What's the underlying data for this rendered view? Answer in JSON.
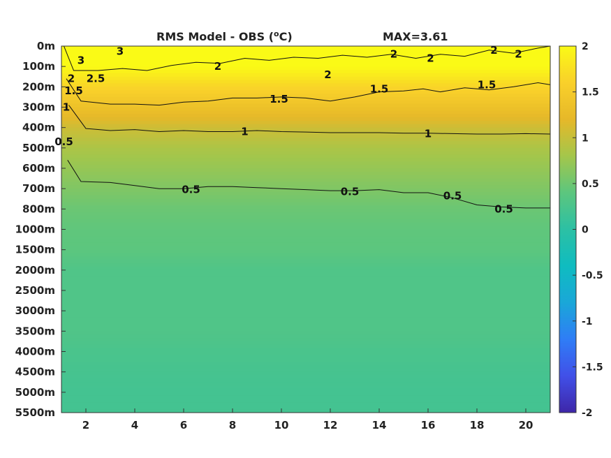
{
  "chart_data": {
    "type": "heatmap",
    "title": "RMS Model - OBS (",
    "title_unit": "o",
    "title_unit_suffix": "C)",
    "max_label": "MAX=3.61",
    "x_ticks": [
      "2",
      "4",
      "6",
      "8",
      "10",
      "12",
      "14",
      "16",
      "18",
      "20"
    ],
    "x_tick_values": [
      2,
      4,
      6,
      8,
      10,
      12,
      14,
      16,
      18,
      20
    ],
    "xlim": [
      1,
      21
    ],
    "y_ticks": [
      "0m",
      "100m",
      "200m",
      "300m",
      "400m",
      "500m",
      "600m",
      "700m",
      "800m",
      "1000m",
      "1500m",
      "2000m",
      "2500m",
      "3000m",
      "3500m",
      "4000m",
      "4500m",
      "5000m",
      "5500m"
    ],
    "colorbar": {
      "range": [
        -2,
        2
      ],
      "ticks": [
        "2",
        "1.5",
        "1",
        "0.5",
        "0",
        "-0.5",
        "-1",
        "-1.5",
        "-2"
      ],
      "tick_values": [
        2,
        1.5,
        1,
        0.5,
        0,
        -0.5,
        -1,
        -1.5,
        -2
      ],
      "colormap": [
        "#3e26a8",
        "#4150e8",
        "#2f7df6",
        "#1aa7d8",
        "#0fbcc0",
        "#2cc0a4",
        "#5cc67e",
        "#a4c64b",
        "#e6b829",
        "#f9d02a",
        "#fafa16"
      ]
    },
    "depth_profile": {
      "depth_m": [
        0,
        100,
        200,
        300,
        400,
        500,
        600,
        700,
        800,
        1000,
        1500,
        2000,
        2500,
        3000,
        3500,
        4000,
        4500,
        5000,
        5500
      ],
      "rms": [
        2.4,
        2.0,
        1.65,
        1.35,
        1.05,
        0.85,
        0.72,
        0.6,
        0.48,
        0.42,
        0.4,
        0.3,
        0.3,
        0.3,
        0.3,
        0.25,
        0.22,
        0.2,
        0.2
      ]
    },
    "contour_labels": [
      {
        "text": "3",
        "x": 3.4,
        "depth_m": 25
      },
      {
        "text": "2",
        "x": 7.4,
        "depth_m": 100
      },
      {
        "text": "2",
        "x": 11.9,
        "depth_m": 140
      },
      {
        "text": "2",
        "x": 14.6,
        "depth_m": 40
      },
      {
        "text": "2",
        "x": 16.1,
        "depth_m": 60
      },
      {
        "text": "2",
        "x": 18.7,
        "depth_m": 20
      },
      {
        "text": "2",
        "x": 19.7,
        "depth_m": 40
      },
      {
        "text": "2.5",
        "x": 2.4,
        "depth_m": 160
      },
      {
        "text": "1.5",
        "x": 9.9,
        "depth_m": 260
      },
      {
        "text": "1.5",
        "x": 14.0,
        "depth_m": 210
      },
      {
        "text": "1.5",
        "x": 18.4,
        "depth_m": 190
      },
      {
        "text": "1",
        "x": 8.5,
        "depth_m": 420
      },
      {
        "text": "1",
        "x": 16.0,
        "depth_m": 430
      },
      {
        "text": "0.5",
        "x": 6.3,
        "depth_m": 705
      },
      {
        "text": "0.5",
        "x": 12.8,
        "depth_m": 715
      },
      {
        "text": "0.5",
        "x": 17.0,
        "depth_m": 735
      },
      {
        "text": "0.5",
        "x": 19.1,
        "depth_m": 800
      },
      {
        "text": "3",
        "x": 1.8,
        "depth_m": 70
      },
      {
        "text": "2",
        "x": 1.4,
        "depth_m": 160
      },
      {
        "text": "1.5",
        "x": 1.5,
        "depth_m": 220
      },
      {
        "text": "1",
        "x": 1.2,
        "depth_m": 300
      },
      {
        "text": "0.5",
        "x": 1.1,
        "depth_m": 470
      }
    ],
    "contours": [
      {
        "level": 2,
        "points": [
          [
            1.1,
            0
          ],
          [
            1.5,
            120
          ],
          [
            2.5,
            120
          ],
          [
            3.5,
            110
          ],
          [
            4.5,
            120
          ],
          [
            5.5,
            95
          ],
          [
            6.5,
            80
          ],
          [
            7.5,
            85
          ],
          [
            8.5,
            60
          ],
          [
            9.5,
            70
          ],
          [
            10.5,
            55
          ],
          [
            11.5,
            60
          ],
          [
            12.5,
            45
          ],
          [
            13.5,
            55
          ],
          [
            14.5,
            40
          ],
          [
            15.5,
            60
          ],
          [
            16.5,
            40
          ],
          [
            17.5,
            50
          ],
          [
            18.5,
            20
          ],
          [
            19.5,
            35
          ],
          [
            20.5,
            10
          ],
          [
            21,
            0
          ]
        ]
      },
      {
        "level": 1.5,
        "points": [
          [
            1.2,
            160
          ],
          [
            1.8,
            270
          ],
          [
            3,
            285
          ],
          [
            4,
            285
          ],
          [
            5,
            290
          ],
          [
            6,
            275
          ],
          [
            7,
            270
          ],
          [
            8,
            255
          ],
          [
            9,
            255
          ],
          [
            10,
            250
          ],
          [
            11,
            255
          ],
          [
            12,
            270
          ],
          [
            13,
            250
          ],
          [
            14,
            225
          ],
          [
            15,
            220
          ],
          [
            15.8,
            210
          ],
          [
            16.5,
            225
          ],
          [
            17.5,
            205
          ],
          [
            18.5,
            215
          ],
          [
            19.5,
            200
          ],
          [
            20.5,
            180
          ],
          [
            21,
            190
          ]
        ]
      },
      {
        "level": 1,
        "points": [
          [
            1.3,
            290
          ],
          [
            2,
            405
          ],
          [
            3,
            415
          ],
          [
            4,
            410
          ],
          [
            5,
            420
          ],
          [
            6,
            415
          ],
          [
            7,
            420
          ],
          [
            8,
            420
          ],
          [
            9,
            415
          ],
          [
            10,
            420
          ],
          [
            11,
            422
          ],
          [
            12,
            425
          ],
          [
            13,
            425
          ],
          [
            14,
            425
          ],
          [
            15,
            428
          ],
          [
            16,
            428
          ],
          [
            17,
            430
          ],
          [
            18,
            432
          ],
          [
            19,
            432
          ],
          [
            20,
            430
          ],
          [
            21,
            432
          ]
        ]
      },
      {
        "level": 0.5,
        "points": [
          [
            1.25,
            560
          ],
          [
            1.8,
            665
          ],
          [
            3,
            670
          ],
          [
            4,
            685
          ],
          [
            5,
            700
          ],
          [
            6,
            700
          ],
          [
            7,
            690
          ],
          [
            8,
            690
          ],
          [
            9,
            695
          ],
          [
            10,
            700
          ],
          [
            11,
            705
          ],
          [
            12,
            710
          ],
          [
            13,
            710
          ],
          [
            14,
            705
          ],
          [
            15,
            720
          ],
          [
            16,
            720
          ],
          [
            17,
            745
          ],
          [
            18,
            780
          ],
          [
            19,
            790
          ],
          [
            20,
            795
          ],
          [
            21,
            795
          ]
        ]
      }
    ]
  }
}
